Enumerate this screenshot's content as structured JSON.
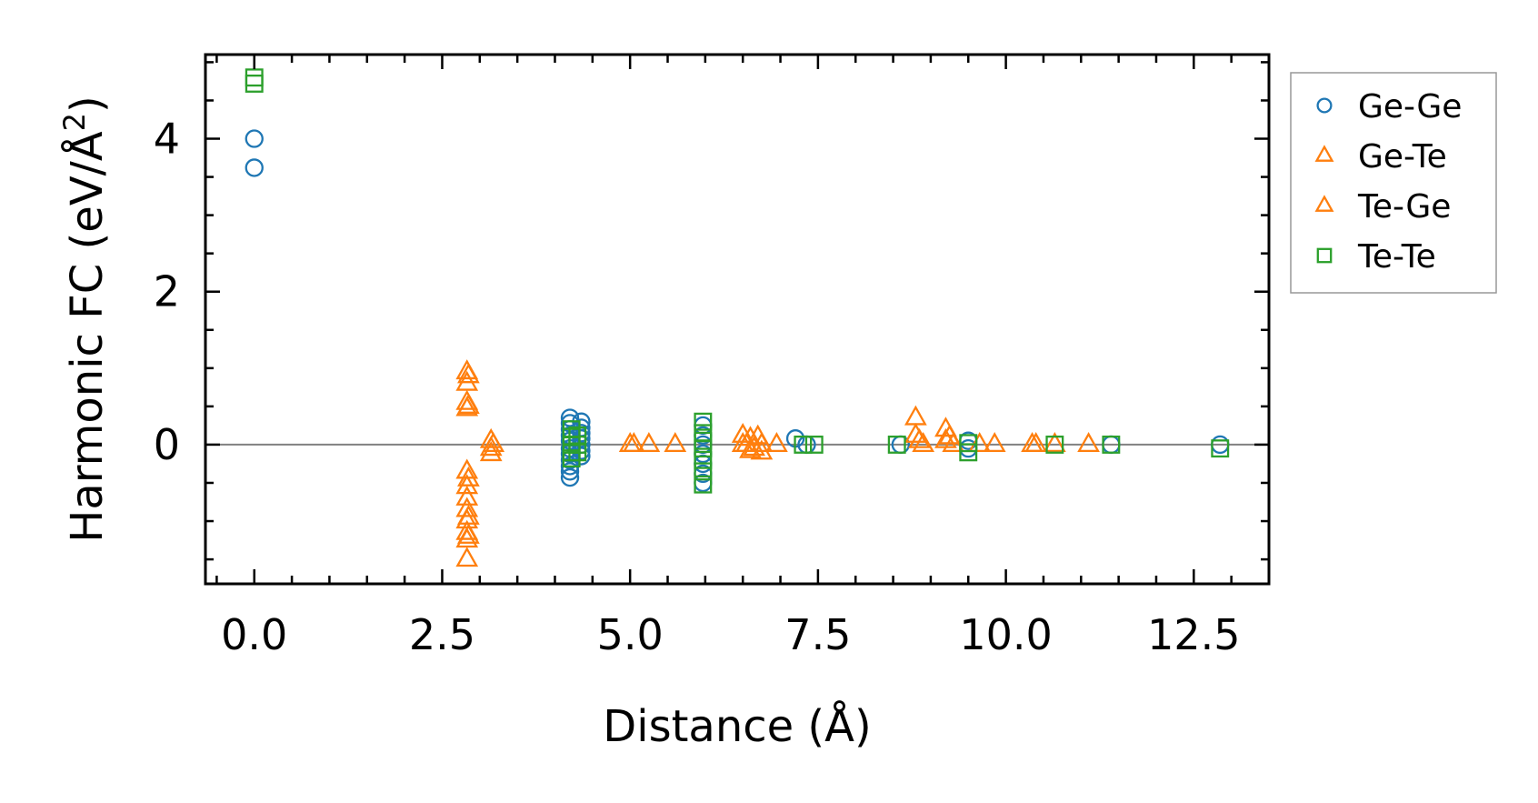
{
  "chart_data": {
    "type": "scatter",
    "title": "",
    "xlabel": "Distance (Å)",
    "ylabel_main": "Harmonic FC (eV/Å",
    "ylabel_sup": "2",
    "ylabel_close": ")",
    "xlim": [
      -0.65,
      13.5
    ],
    "ylim": [
      -1.82,
      5.1
    ],
    "xticks": [
      0.0,
      2.5,
      5.0,
      7.5,
      10.0,
      12.5
    ],
    "xtick_labels": [
      "0.0",
      "2.5",
      "5.0",
      "7.5",
      "10.0",
      "12.5"
    ],
    "yticks": [
      0,
      2,
      4
    ],
    "ytick_labels": [
      "0",
      "2",
      "4"
    ],
    "x_minor_step": 0.5,
    "y_minor_step": 0.5,
    "zero_line": 0,
    "legend_position": "outside-right-top",
    "series": [
      {
        "name": "Ge-Ge",
        "marker": "circle",
        "color": "#1f77b4",
        "points": [
          [
            0.0,
            4.0
          ],
          [
            0.0,
            3.62
          ],
          [
            4.2,
            0.35
          ],
          [
            4.2,
            0.28
          ],
          [
            4.2,
            0.2
          ],
          [
            4.2,
            0.12
          ],
          [
            4.2,
            0.05
          ],
          [
            4.2,
            -0.05
          ],
          [
            4.2,
            -0.12
          ],
          [
            4.2,
            -0.2
          ],
          [
            4.2,
            -0.28
          ],
          [
            4.2,
            -0.35
          ],
          [
            4.2,
            -0.43
          ],
          [
            4.35,
            0.3
          ],
          [
            4.35,
            0.22
          ],
          [
            4.35,
            0.15
          ],
          [
            4.35,
            0.08
          ],
          [
            4.35,
            0.0
          ],
          [
            4.35,
            -0.08
          ],
          [
            4.35,
            -0.15
          ],
          [
            5.97,
            0.25
          ],
          [
            5.97,
            0.12
          ],
          [
            5.97,
            0.0
          ],
          [
            5.97,
            -0.12
          ],
          [
            5.97,
            -0.25
          ],
          [
            5.97,
            -0.38
          ],
          [
            5.97,
            -0.5
          ],
          [
            7.2,
            0.08
          ],
          [
            7.35,
            0.0
          ],
          [
            8.6,
            0.0
          ],
          [
            9.5,
            0.05
          ],
          [
            9.5,
            -0.05
          ],
          [
            11.4,
            0.0
          ],
          [
            12.85,
            0.0
          ]
        ]
      },
      {
        "name": "Ge-Te",
        "marker": "triangle",
        "color": "#ff7f0e",
        "points": [
          [
            2.83,
            0.95
          ],
          [
            2.83,
            0.8
          ],
          [
            2.83,
            0.55
          ],
          [
            2.83,
            0.47
          ],
          [
            2.83,
            -0.35
          ],
          [
            2.83,
            -0.55
          ],
          [
            2.83,
            -0.7
          ],
          [
            2.83,
            -0.85
          ],
          [
            2.83,
            -1.0
          ],
          [
            2.83,
            -1.15
          ],
          [
            2.83,
            -1.25
          ],
          [
            2.83,
            -1.5
          ],
          [
            3.15,
            0.05
          ],
          [
            3.15,
            -0.05
          ],
          [
            3.15,
            -0.12
          ],
          [
            5.0,
            0.0
          ],
          [
            5.25,
            0.0
          ],
          [
            5.6,
            0.0
          ],
          [
            6.5,
            0.12
          ],
          [
            6.55,
            0.0
          ],
          [
            6.6,
            0.08
          ],
          [
            6.65,
            -0.05
          ],
          [
            6.7,
            0.1
          ],
          [
            6.75,
            0.0
          ],
          [
            6.75,
            -0.1
          ],
          [
            6.95,
            0.0
          ],
          [
            8.8,
            0.35
          ],
          [
            8.8,
            0.12
          ],
          [
            8.9,
            0.0
          ],
          [
            9.2,
            0.2
          ],
          [
            9.2,
            0.05
          ],
          [
            9.3,
            0.0
          ],
          [
            9.65,
            0.0
          ],
          [
            9.85,
            0.0
          ],
          [
            10.35,
            0.0
          ],
          [
            10.65,
            0.0
          ],
          [
            11.1,
            0.0
          ]
        ]
      },
      {
        "name": "Te-Ge",
        "marker": "triangle",
        "color": "#ff7f0e",
        "points": [
          [
            2.85,
            0.9
          ],
          [
            2.85,
            0.5
          ],
          [
            2.85,
            -0.45
          ],
          [
            2.85,
            -0.95
          ],
          [
            2.85,
            -1.2
          ],
          [
            3.18,
            0.0
          ],
          [
            5.05,
            0.0
          ],
          [
            6.5,
            0.0
          ],
          [
            6.6,
            -0.08
          ],
          [
            8.85,
            0.05
          ],
          [
            9.25,
            0.1
          ],
          [
            10.4,
            0.0
          ]
        ]
      },
      {
        "name": "Te-Te",
        "marker": "square",
        "color": "#2ca02c",
        "points": [
          [
            0.0,
            4.8
          ],
          [
            0.0,
            4.72
          ],
          [
            4.22,
            0.2
          ],
          [
            4.22,
            0.1
          ],
          [
            4.22,
            0.0
          ],
          [
            4.22,
            -0.1
          ],
          [
            4.22,
            -0.18
          ],
          [
            4.3,
            0.12
          ],
          [
            4.3,
            0.0
          ],
          [
            4.3,
            -0.1
          ],
          [
            5.97,
            0.3
          ],
          [
            5.97,
            0.15
          ],
          [
            5.97,
            0.05
          ],
          [
            5.97,
            -0.05
          ],
          [
            5.97,
            -0.2
          ],
          [
            5.97,
            -0.35
          ],
          [
            5.97,
            -0.52
          ],
          [
            7.3,
            0.0
          ],
          [
            7.45,
            0.0
          ],
          [
            8.55,
            0.0
          ],
          [
            9.5,
            0.02
          ],
          [
            9.5,
            -0.1
          ],
          [
            10.65,
            0.0
          ],
          [
            11.4,
            0.0
          ],
          [
            12.85,
            -0.05
          ]
        ]
      }
    ]
  }
}
